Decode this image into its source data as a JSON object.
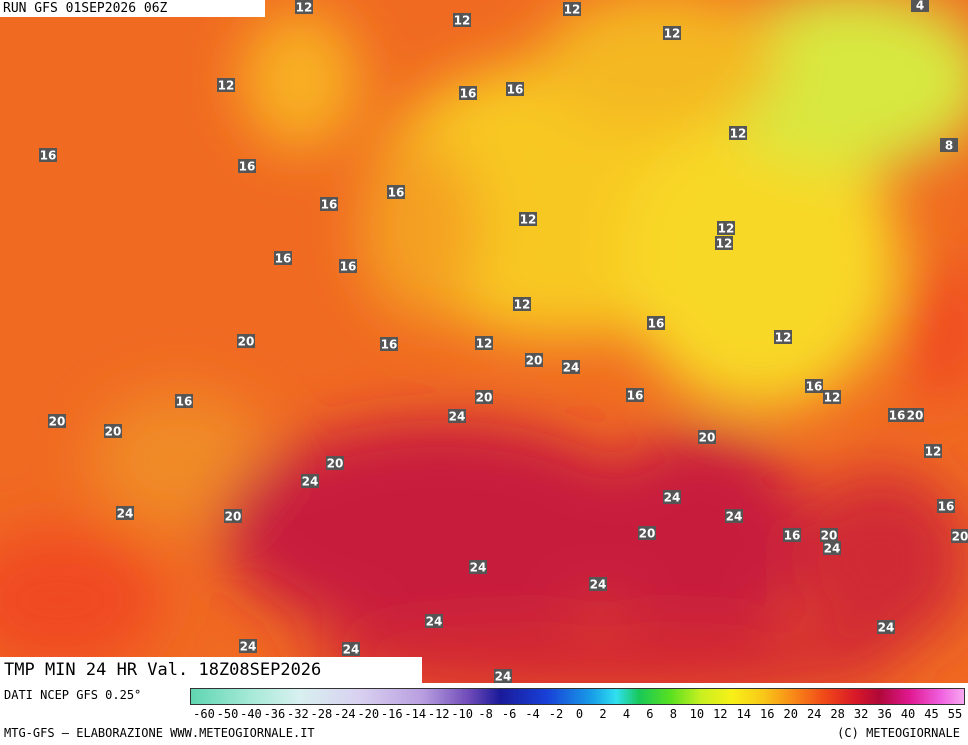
{
  "header": {
    "run": "RUN GFS 01SEP2026 06Z"
  },
  "map": {
    "labels": [
      12,
      12,
      12,
      4,
      12,
      12,
      16,
      16,
      12,
      16,
      16,
      8,
      16,
      16,
      12,
      12,
      12,
      16,
      16,
      12,
      16,
      20,
      16,
      12,
      12,
      20,
      24,
      16,
      12,
      16,
      16,
      20,
      24,
      16,
      20,
      20,
      20,
      20,
      12,
      20,
      24,
      24,
      24,
      20,
      24,
      16,
      20,
      16,
      20,
      24,
      20,
      24,
      24,
      24,
      24,
      24,
      24,
      24
    ]
  },
  "footer": {
    "title": "TMP MIN 24 HR Val. 18Z08SEP2026",
    "source": "DATI NCEP GFS 0.25°",
    "credit": "MTG-GFS — ELABORAZIONE WWW.METEOGIORNALE.IT",
    "copyright": "(C) METEOGIORNALE"
  },
  "scale": {
    "ticks": [
      -60,
      -50,
      -40,
      -36,
      -32,
      -28,
      -24,
      -20,
      -16,
      -14,
      -12,
      -10,
      -8,
      -6,
      -4,
      -2,
      0,
      2,
      4,
      6,
      8,
      10,
      12,
      14,
      16,
      20,
      24,
      28,
      32,
      36,
      40,
      45,
      55
    ]
  }
}
